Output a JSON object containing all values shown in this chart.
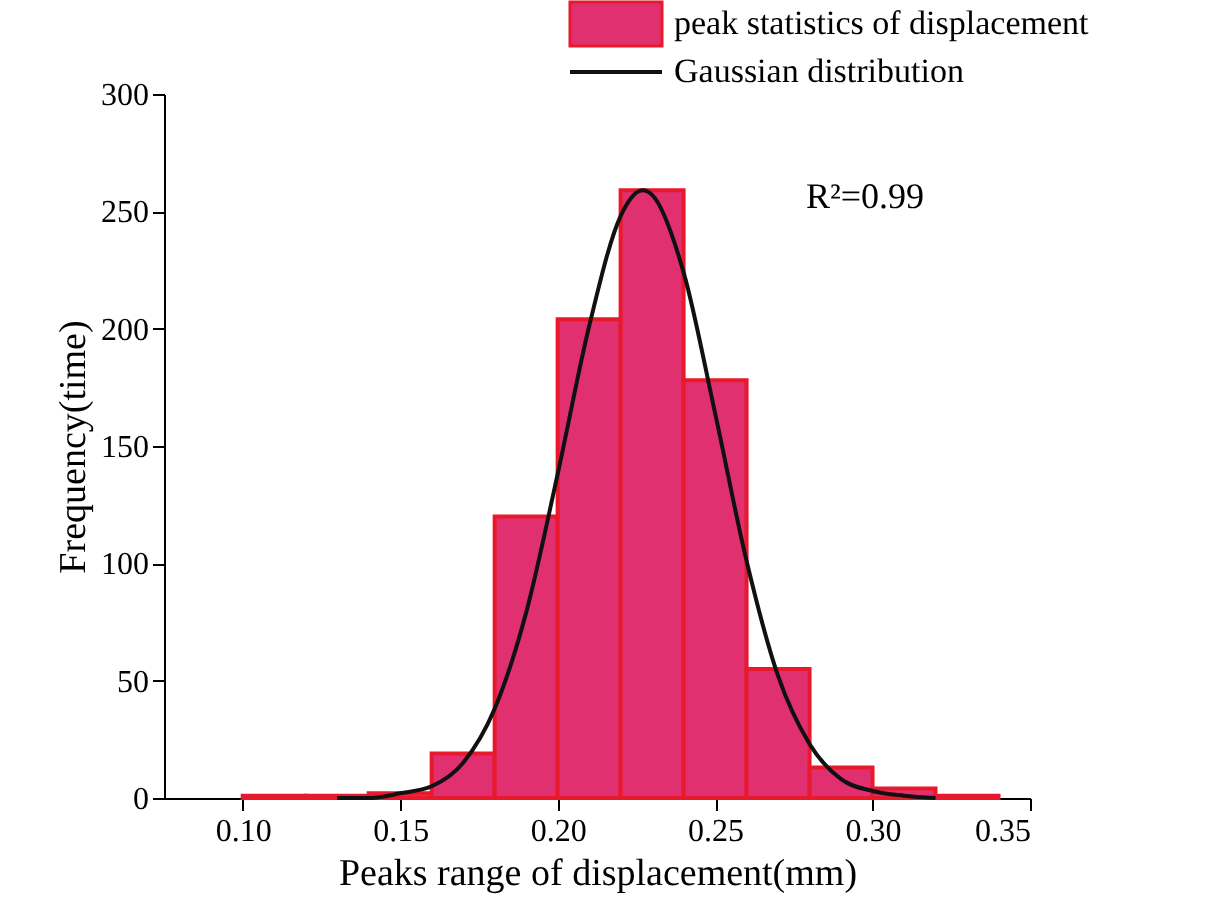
{
  "chart_data": {
    "type": "histogram",
    "xlabel": "Peaks range of  displacement(mm)",
    "ylabel": "Frequency(time)",
    "bins": [
      0.1,
      0.12,
      0.14,
      0.16,
      0.18,
      0.2,
      0.22,
      0.24,
      0.26,
      0.28,
      0.3,
      0.32,
      0.34
    ],
    "series": [
      {
        "name": "peak statistics of displacement",
        "color": "#e0306f",
        "values": [
          1,
          1,
          2,
          19,
          120,
          204,
          259,
          178,
          55,
          13,
          4,
          1
        ]
      },
      {
        "name": "Gaussian distribution",
        "type": "line",
        "color": "#111111",
        "x": [
          0.13,
          0.14,
          0.15,
          0.16,
          0.17,
          0.18,
          0.19,
          0.2,
          0.21,
          0.22,
          0.227,
          0.23,
          0.24,
          0.25,
          0.26,
          0.27,
          0.28,
          0.29,
          0.3,
          0.31,
          0.32
        ],
        "values": [
          0,
          0,
          2,
          5,
          15,
          38,
          79,
          138,
          201,
          248,
          259,
          257,
          224,
          164,
          101,
          52,
          23,
          8,
          3,
          1,
          0
        ]
      }
    ],
    "xlim": [
      0.075,
      0.35
    ],
    "xticks": [
      {
        "value": 0.1,
        "label": "0.10"
      },
      {
        "value": 0.15,
        "label": "0.15"
      },
      {
        "value": 0.2,
        "label": "0.20"
      },
      {
        "value": 0.25,
        "label": "0.25"
      },
      {
        "value": 0.3,
        "label": "0.30"
      },
      {
        "value": 0.35,
        "label": "0.35"
      }
    ],
    "ylim": [
      0,
      300
    ],
    "yticks": [
      0,
      50,
      100,
      150,
      200,
      250,
      300
    ],
    "annotations": [
      "R²=0.99"
    ],
    "legend": "top right",
    "grid": false
  }
}
